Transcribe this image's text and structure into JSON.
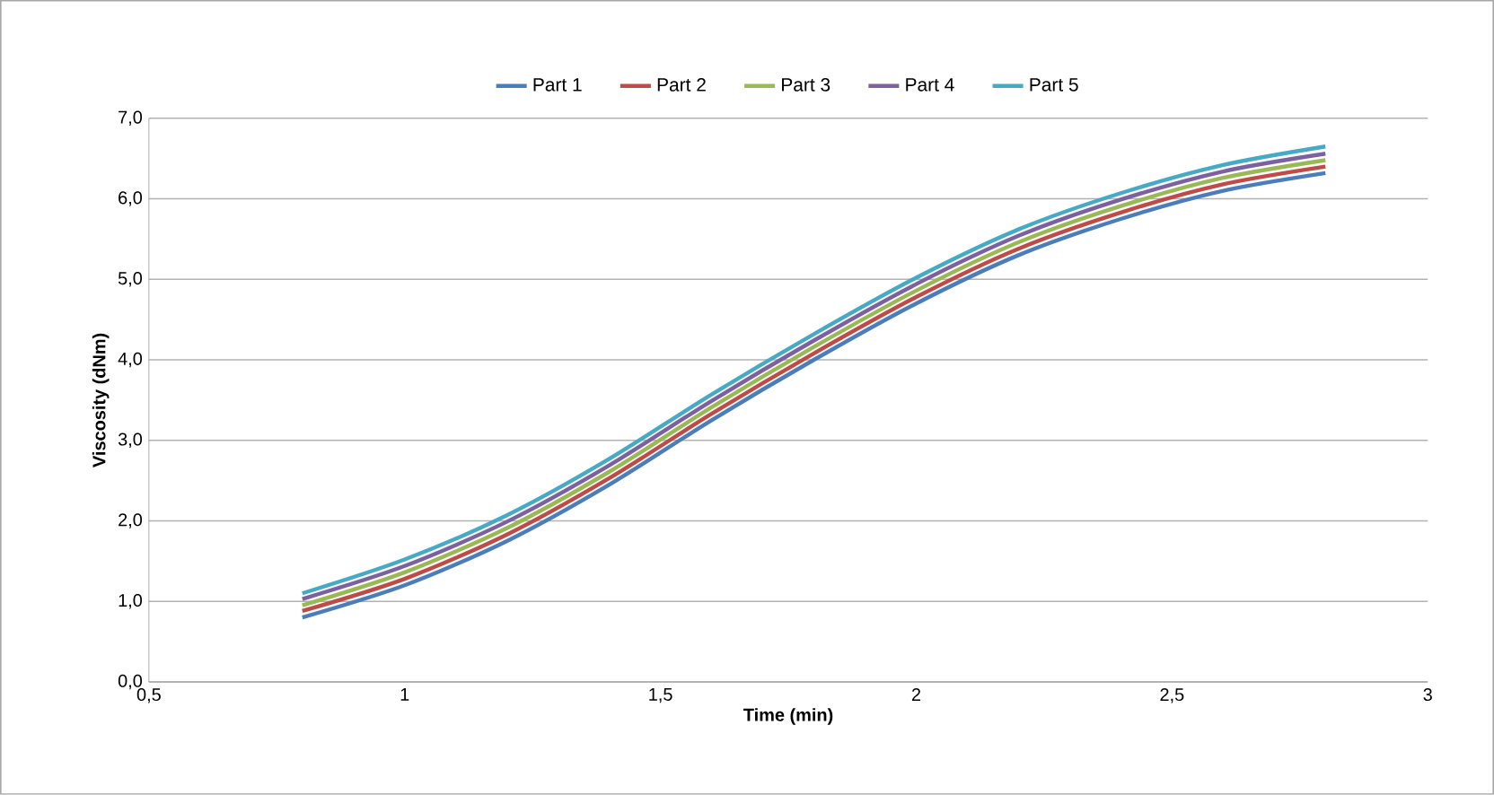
{
  "chart_data": {
    "type": "line",
    "xlabel": "Time (min)",
    "ylabel": "Viscosity (dNm)",
    "x": [
      0.8,
      1.0,
      1.2,
      1.4,
      1.6,
      1.8,
      2.0,
      2.2,
      2.4,
      2.6,
      2.8
    ],
    "series": [
      {
        "name": "Part 1",
        "color": "#4a7ebb",
        "values": [
          0.8,
          1.2,
          1.75,
          2.45,
          3.25,
          4.0,
          4.7,
          5.3,
          5.75,
          6.1,
          6.32
        ]
      },
      {
        "name": "Part 2",
        "color": "#be4b48",
        "values": [
          0.88,
          1.28,
          1.83,
          2.53,
          3.33,
          4.08,
          4.78,
          5.38,
          5.83,
          6.18,
          6.4
        ]
      },
      {
        "name": "Part 3",
        "color": "#98b954",
        "values": [
          0.95,
          1.36,
          1.91,
          2.61,
          3.41,
          4.16,
          4.86,
          5.46,
          5.91,
          6.26,
          6.48
        ]
      },
      {
        "name": "Part 4",
        "color": "#7d60a0",
        "values": [
          1.03,
          1.44,
          1.99,
          2.69,
          3.49,
          4.24,
          4.94,
          5.54,
          5.99,
          6.34,
          6.56
        ]
      },
      {
        "name": "Part 5",
        "color": "#46aac5",
        "values": [
          1.1,
          1.52,
          2.07,
          2.77,
          3.57,
          4.32,
          5.02,
          5.62,
          6.07,
          6.42,
          6.65
        ]
      }
    ],
    "xlim": [
      0.5,
      3
    ],
    "xticks": [
      {
        "value": 0.5,
        "label": "0,5"
      },
      1,
      {
        "value": 1.5,
        "label": "1,5"
      },
      2,
      {
        "value": 2.5,
        "label": "2,5"
      },
      3
    ],
    "ylim": [
      0,
      7
    ],
    "yticks": [
      {
        "value": 0,
        "label": "0,0"
      },
      {
        "value": 1,
        "label": "1,0"
      },
      {
        "value": 2,
        "label": "2,0"
      },
      {
        "value": 3,
        "label": "3,0"
      },
      {
        "value": 4,
        "label": "4,0"
      },
      {
        "value": 5,
        "label": "5,0"
      },
      {
        "value": 6,
        "label": "6,0"
      },
      {
        "value": 7,
        "label": "7,0"
      }
    ],
    "grid": "y",
    "legend": "top",
    "marker": "none",
    "line_style": "solid"
  }
}
